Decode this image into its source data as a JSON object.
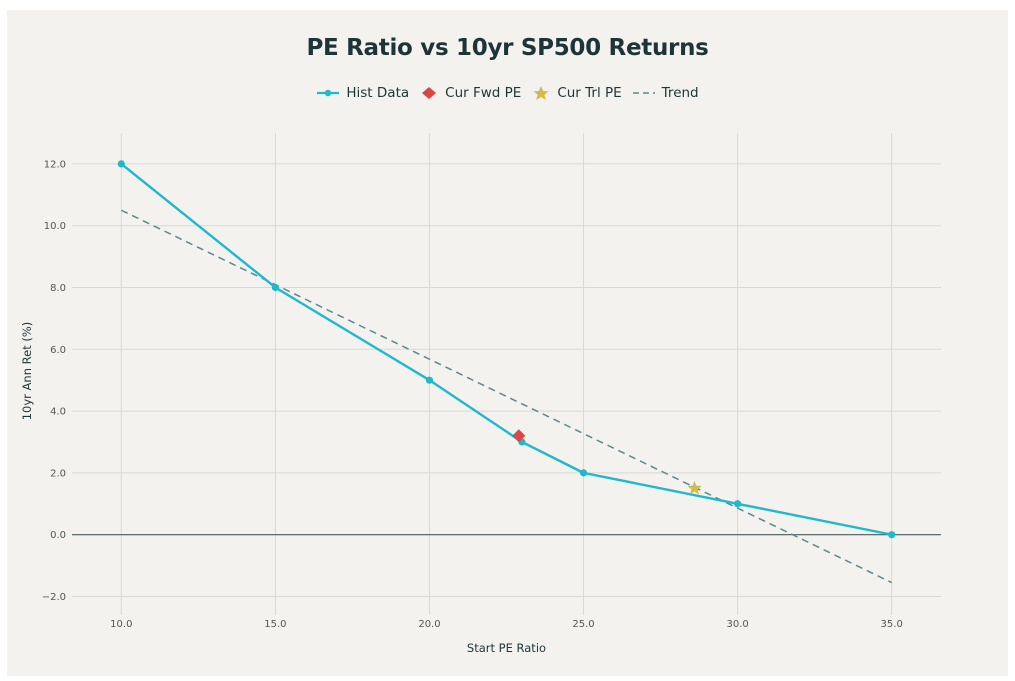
{
  "chart_data": {
    "type": "line",
    "title": "PE Ratio vs 10yr SP500 Returns",
    "xlabel": "Start PE Ratio",
    "ylabel": "10yr Ann Ret (%)",
    "xlim": [
      8.4,
      36.6
    ],
    "ylim": [
      -2.6,
      13.0
    ],
    "x_ticks": [
      10,
      15,
      20,
      25,
      30,
      35
    ],
    "x_tick_labels": [
      "10.0",
      "15.0",
      "20.0",
      "25.0",
      "30.0",
      "35.0"
    ],
    "y_ticks": [
      -2,
      0,
      2,
      4,
      6,
      8,
      10,
      12
    ],
    "y_tick_labels": [
      "−2.0",
      "0.0",
      "2.0",
      "4.0",
      "6.0",
      "8.0",
      "10.0",
      "12.0"
    ],
    "grid": true,
    "legend_position": "top-center",
    "series": [
      {
        "name": "Hist Data",
        "kind": "line+markers",
        "color": "#1fb8cd",
        "x": [
          10,
          15,
          20,
          23,
          25,
          30,
          35
        ],
        "y": [
          12,
          8,
          5,
          3,
          2,
          1,
          0
        ]
      },
      {
        "name": "Cur Fwd PE",
        "kind": "marker",
        "marker": "diamond",
        "color": "#db4545",
        "x": [
          22.9
        ],
        "y": [
          3.2
        ]
      },
      {
        "name": "Cur Trl PE",
        "kind": "marker",
        "marker": "star",
        "color": "#d2ba4c",
        "x": [
          28.6
        ],
        "y": [
          1.5
        ]
      },
      {
        "name": "Trend",
        "kind": "dashed-line",
        "color": "#5d878f",
        "x": [
          10,
          35
        ],
        "y": [
          10.5,
          -1.55
        ]
      }
    ],
    "zero_line_color": "#4a5a5a"
  }
}
